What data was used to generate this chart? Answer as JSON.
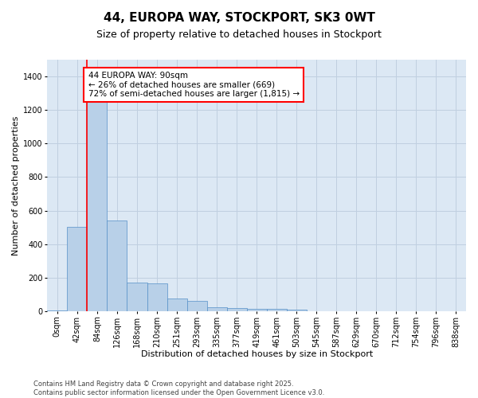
{
  "title": "44, EUROPA WAY, STOCKPORT, SK3 0WT",
  "subtitle": "Size of property relative to detached houses in Stockport",
  "xlabel": "Distribution of detached houses by size in Stockport",
  "ylabel": "Number of detached properties",
  "bar_color": "#b8d0e8",
  "bar_edge_color": "#5590c8",
  "grid_color": "#c0cfe0",
  "background_color": "#dce8f4",
  "categories": [
    "0sqm",
    "42sqm",
    "84sqm",
    "126sqm",
    "168sqm",
    "210sqm",
    "251sqm",
    "293sqm",
    "335sqm",
    "377sqm",
    "419sqm",
    "461sqm",
    "503sqm",
    "545sqm",
    "587sqm",
    "629sqm",
    "670sqm",
    "712sqm",
    "754sqm",
    "796sqm",
    "838sqm"
  ],
  "values": [
    5,
    505,
    1340,
    540,
    170,
    168,
    75,
    60,
    22,
    20,
    14,
    12,
    8,
    0,
    0,
    0,
    0,
    0,
    0,
    0,
    0
  ],
  "ylim": [
    0,
    1500
  ],
  "yticks": [
    0,
    200,
    400,
    600,
    800,
    1000,
    1200,
    1400
  ],
  "red_line_x": 2.0,
  "annotation_text": "44 EUROPA WAY: 90sqm\n← 26% of detached houses are smaller (669)\n72% of semi-detached houses are larger (1,815) →",
  "annotation_box_color": "white",
  "annotation_border_color": "red",
  "footer_line1": "Contains HM Land Registry data © Crown copyright and database right 2025.",
  "footer_line2": "Contains public sector information licensed under the Open Government Licence v3.0.",
  "title_fontsize": 11,
  "subtitle_fontsize": 9,
  "axis_label_fontsize": 8,
  "tick_fontsize": 7,
  "annotation_fontsize": 7.5,
  "footer_fontsize": 6
}
